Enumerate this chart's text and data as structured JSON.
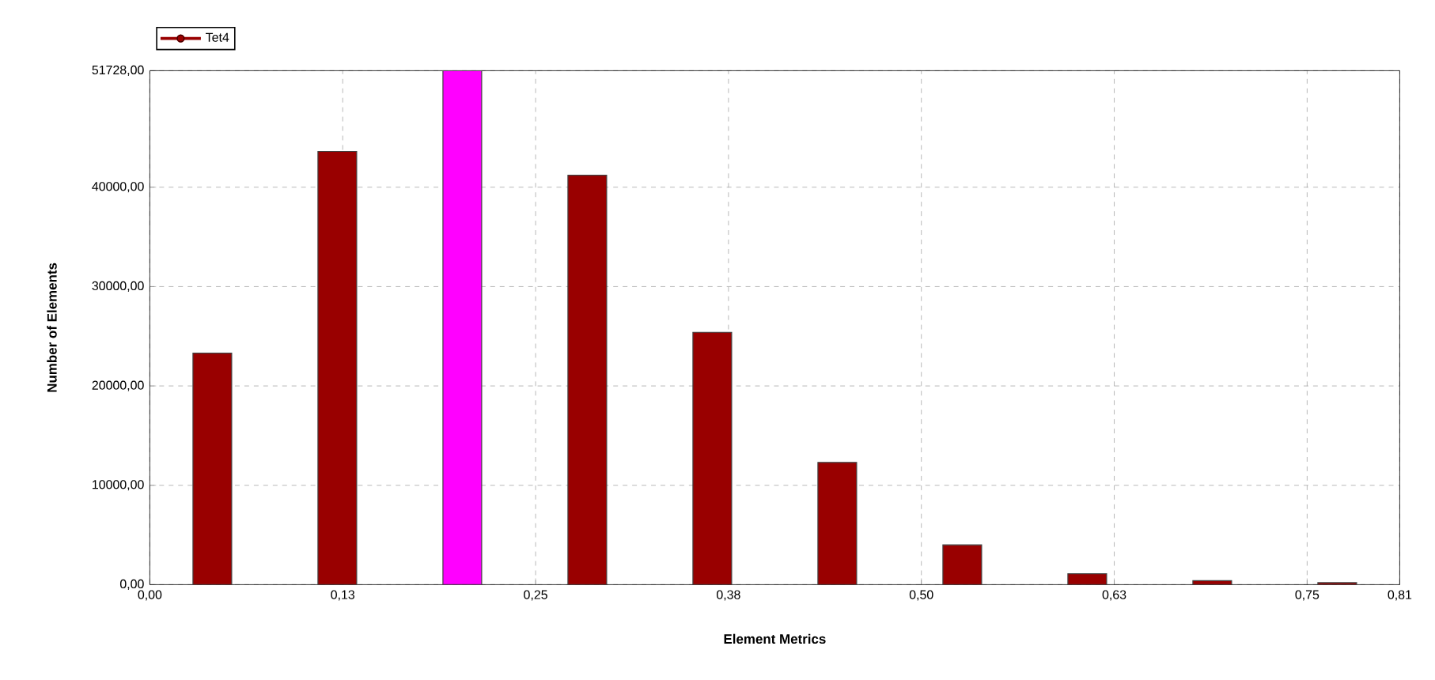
{
  "chart_data": {
    "type": "histogram",
    "xlabel": "Element Metrics",
    "ylabel": "Number of Elements",
    "bins": [
      0,
      0.081,
      0.162,
      0.243,
      0.324,
      0.405,
      0.486,
      0.567,
      0.648,
      0.729,
      0.81
    ],
    "series": [
      {
        "name": "Tet4",
        "color": "#990000",
        "colors": [
          "#990000",
          "#990000",
          "#ff00ff",
          "#990000",
          "#990000",
          "#990000",
          "#990000",
          "#990000",
          "#990000",
          "#990000"
        ],
        "values": [
          23300,
          43600,
          51728,
          41200,
          25400,
          12300,
          4000,
          1100,
          400,
          200
        ]
      }
    ],
    "xlim": [
      0,
      0.81
    ],
    "xticks": [
      {
        "value": 0,
        "label": "0,00"
      },
      {
        "value": 0.125,
        "label": "0,13"
      },
      {
        "value": 0.25,
        "label": "0,25"
      },
      {
        "value": 0.375,
        "label": "0,38"
      },
      {
        "value": 0.5,
        "label": "0,50"
      },
      {
        "value": 0.625,
        "label": "0,63"
      },
      {
        "value": 0.75,
        "label": "0,75"
      },
      {
        "value": 0.81,
        "label": "0,81"
      }
    ],
    "ylim": [
      0,
      51728
    ],
    "yticks": [
      {
        "value": 0,
        "label": "0,00"
      },
      {
        "value": 10000,
        "label": "10000,00"
      },
      {
        "value": 20000,
        "label": "20000,00"
      },
      {
        "value": 30000,
        "label": "30000,00"
      },
      {
        "value": 40000,
        "label": "40000,00"
      },
      {
        "value": 51728,
        "label": "51728,00"
      }
    ],
    "grid": true,
    "legend": "top left"
  }
}
